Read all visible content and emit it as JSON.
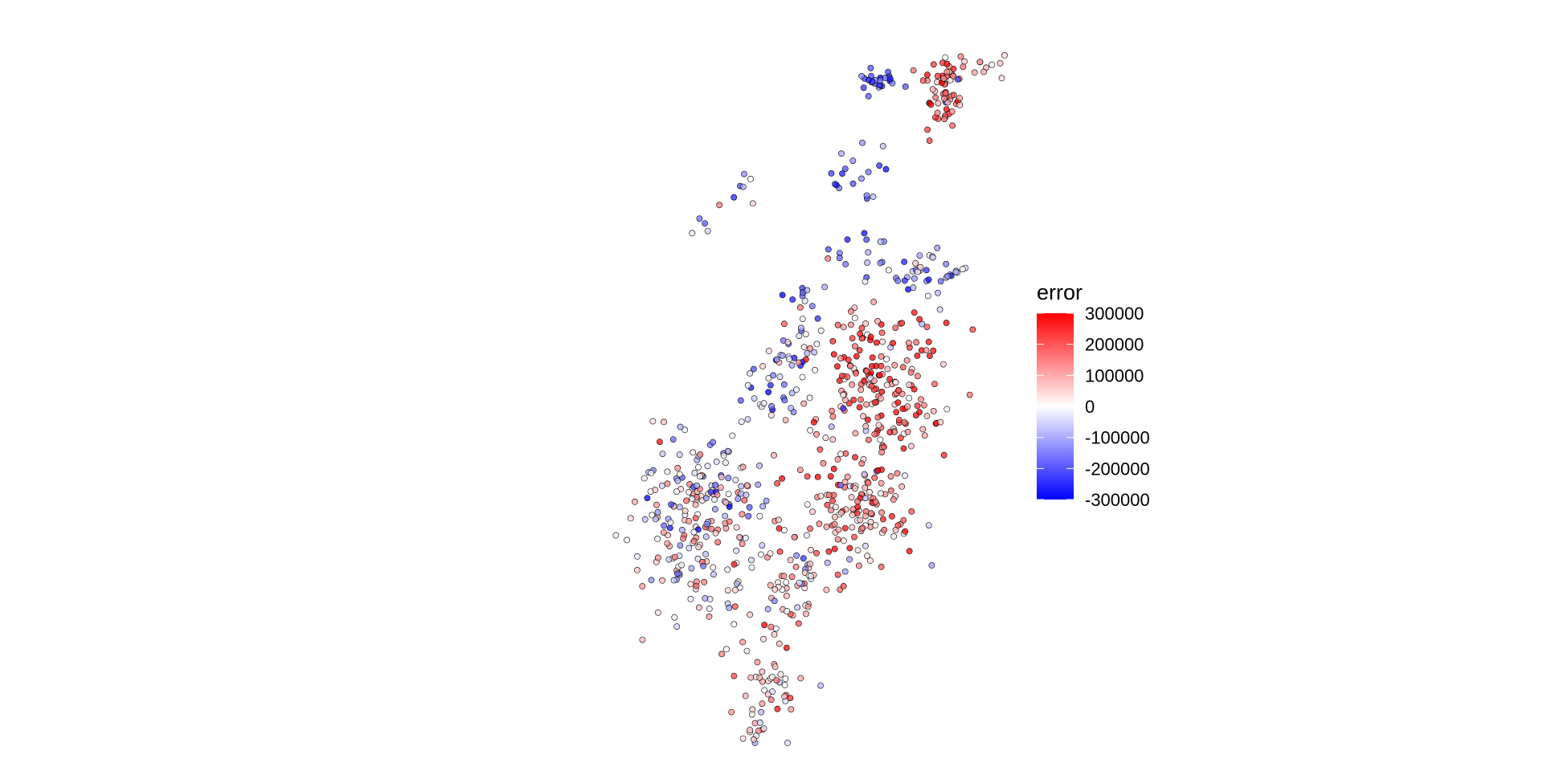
{
  "chart_data": {
    "type": "scatter",
    "title": "",
    "xlabel": "",
    "ylabel": "",
    "grid": false,
    "axes_visible": false,
    "legend_placement": "right",
    "color_scale": {
      "title": "error",
      "low_color": "#0000ff",
      "mid_color": "#ffffff",
      "high_color": "#ff0000",
      "domain": [
        -300000,
        300000
      ],
      "ticks": [
        {
          "value": 300000,
          "label": "300000"
        },
        {
          "value": 200000,
          "label": "200000"
        },
        {
          "value": 100000,
          "label": "100000"
        },
        {
          "value": 0,
          "label": "0"
        },
        {
          "value": -100000,
          "label": "-100000"
        },
        {
          "value": -200000,
          "label": "-200000"
        },
        {
          "value": -300000,
          "label": "-300000"
        }
      ]
    },
    "clusters": [
      {
        "cx": 0.78,
        "cy": 0.93,
        "sx": 0.018,
        "sy": 0.012,
        "n": 24,
        "error_mean": -220000,
        "error_sd": 60000
      },
      {
        "cx": 0.76,
        "cy": 0.8,
        "sx": 0.03,
        "sy": 0.025,
        "n": 18,
        "error_mean": -180000,
        "error_sd": 70000
      },
      {
        "cx": 0.75,
        "cy": 0.69,
        "sx": 0.03,
        "sy": 0.02,
        "n": 14,
        "error_mean": -190000,
        "error_sd": 70000
      },
      {
        "cx": 0.895,
        "cy": 0.91,
        "sx": 0.02,
        "sy": 0.03,
        "n": 60,
        "error_mean": 200000,
        "error_sd": 100000
      },
      {
        "cx": 0.96,
        "cy": 0.95,
        "sx": 0.025,
        "sy": 0.012,
        "n": 14,
        "error_mean": 110000,
        "error_sd": 80000
      },
      {
        "cx": 0.86,
        "cy": 0.66,
        "sx": 0.04,
        "sy": 0.015,
        "n": 36,
        "error_mean": -120000,
        "error_sd": 80000
      },
      {
        "cx": 0.55,
        "cy": 0.77,
        "sx": 0.015,
        "sy": 0.012,
        "n": 6,
        "error_mean": -120000,
        "error_sd": 100000
      },
      {
        "cx": 0.49,
        "cy": 0.72,
        "sx": 0.015,
        "sy": 0.015,
        "n": 5,
        "error_mean": -50000,
        "error_sd": 120000
      },
      {
        "cx": 0.66,
        "cy": 0.63,
        "sx": 0.02,
        "sy": 0.01,
        "n": 10,
        "error_mean": -170000,
        "error_sd": 80000
      },
      {
        "cx": 0.65,
        "cy": 0.56,
        "sx": 0.03,
        "sy": 0.03,
        "n": 32,
        "error_mean": -80000,
        "error_sd": 120000
      },
      {
        "cx": 0.6,
        "cy": 0.49,
        "sx": 0.025,
        "sy": 0.02,
        "n": 26,
        "error_mean": -130000,
        "error_sd": 100000
      },
      {
        "cx": 0.78,
        "cy": 0.5,
        "sx": 0.055,
        "sy": 0.06,
        "n": 210,
        "error_mean": 180000,
        "error_sd": 110000
      },
      {
        "cx": 0.75,
        "cy": 0.32,
        "sx": 0.055,
        "sy": 0.045,
        "n": 120,
        "error_mean": 120000,
        "error_sd": 110000
      },
      {
        "cx": 0.48,
        "cy": 0.34,
        "sx": 0.06,
        "sy": 0.05,
        "n": 170,
        "error_mean": 0,
        "error_sd": 120000
      },
      {
        "cx": 0.46,
        "cy": 0.24,
        "sx": 0.04,
        "sy": 0.04,
        "n": 40,
        "error_mean": 30000,
        "error_sd": 100000
      },
      {
        "cx": 0.62,
        "cy": 0.23,
        "sx": 0.045,
        "sy": 0.05,
        "n": 70,
        "error_mean": 90000,
        "error_sd": 100000
      },
      {
        "cx": 0.6,
        "cy": 0.09,
        "sx": 0.035,
        "sy": 0.04,
        "n": 50,
        "error_mean": 70000,
        "error_sd": 100000
      },
      {
        "cx": 0.57,
        "cy": 0.02,
        "sx": 0.012,
        "sy": 0.01,
        "n": 8,
        "error_mean": 40000,
        "error_sd": 60000
      }
    ]
  }
}
